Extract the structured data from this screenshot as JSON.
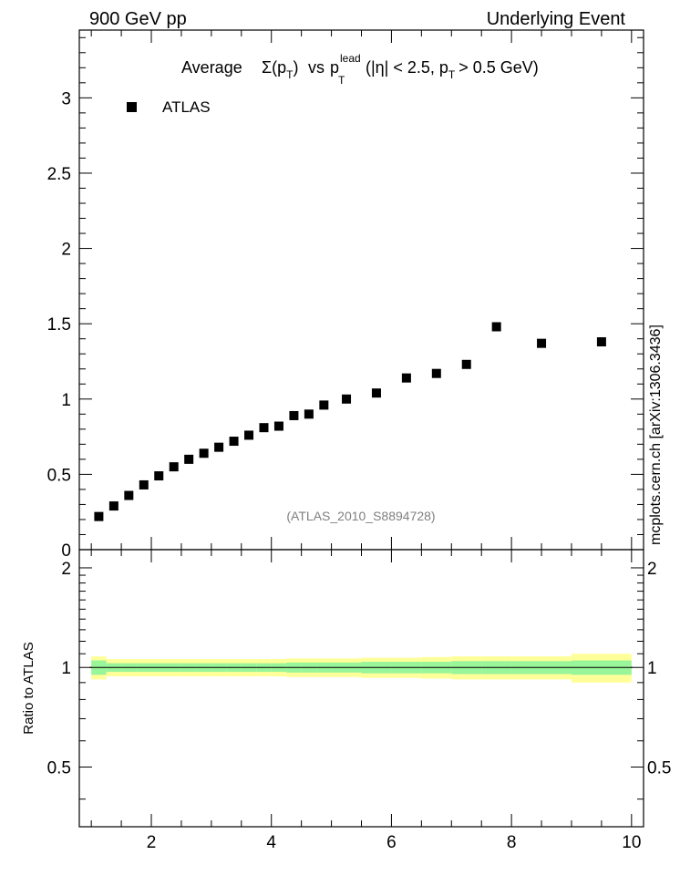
{
  "header": {
    "left": "900 GeV pp",
    "right": "Underlying Event"
  },
  "watermark": "mcplots.cern.ch [arXiv:1306.3436]",
  "analysis_tag": "(ATLAS_2010_S8894728)",
  "colors": {
    "markers": "#000000",
    "band_inner": "#99f599",
    "band_outer": "#ffff99",
    "ratio_line": "#000000",
    "tag_text": "#808080"
  },
  "chart_data": [
    {
      "panel": "main",
      "type": "scatter",
      "title_parts": {
        "prefix": "Average",
        "sigma": "Σ(p",
        "sub_T": "T",
        "close": ")",
        "vs": "vs",
        "p": "p",
        "sup_lead": "lead",
        "cuts_a": "(|η| < 2.5, p",
        "cuts_b": "> 0.5 GeV)"
      },
      "legend": [
        {
          "name": "ATLAS",
          "marker": "square",
          "position": "top-left"
        }
      ],
      "xlim": [
        0.8,
        10.2
      ],
      "ylim": [
        0,
        3.45
      ],
      "yticks": [
        0,
        0.5,
        1,
        1.5,
        2,
        2.5,
        3
      ],
      "ytick_labels": [
        "0",
        "0.5",
        "1",
        "1.5",
        "2",
        "2.5",
        "3"
      ],
      "series": [
        {
          "name": "ATLAS",
          "x": [
            1.125,
            1.375,
            1.625,
            1.875,
            2.125,
            2.375,
            2.625,
            2.875,
            3.125,
            3.375,
            3.625,
            3.875,
            4.125,
            4.375,
            4.625,
            4.875,
            5.25,
            5.75,
            6.25,
            6.75,
            7.25,
            7.75,
            8.5,
            9.5
          ],
          "y": [
            0.22,
            0.29,
            0.36,
            0.43,
            0.49,
            0.55,
            0.6,
            0.64,
            0.68,
            0.72,
            0.76,
            0.81,
            0.82,
            0.89,
            0.9,
            0.96,
            1.0,
            1.04,
            1.14,
            1.17,
            1.23,
            1.48,
            1.37,
            1.38
          ]
        }
      ]
    },
    {
      "panel": "ratio",
      "type": "area",
      "ylabel": "Ratio to ATLAS",
      "xlim": [
        0.8,
        10.2
      ],
      "ylim": [
        0.33,
        2.27
      ],
      "yticks": [
        0.5,
        1,
        2
      ],
      "ytick_labels": [
        "0.5",
        "1",
        "2"
      ],
      "xticks": [
        2,
        4,
        6,
        8,
        10
      ],
      "xtick_labels": [
        "2",
        "4",
        "6",
        "8",
        "10"
      ],
      "bins": [
        1.0,
        1.25,
        1.5,
        1.75,
        2.0,
        2.25,
        2.5,
        2.75,
        3.0,
        3.25,
        3.5,
        3.75,
        4.0,
        4.25,
        4.5,
        4.75,
        5.0,
        5.5,
        6.0,
        6.5,
        7.0,
        7.5,
        8.0,
        9.0,
        10.0
      ],
      "inner_band": [
        0.05,
        0.03,
        0.03,
        0.03,
        0.03,
        0.03,
        0.03,
        0.03,
        0.03,
        0.03,
        0.03,
        0.03,
        0.03,
        0.035,
        0.035,
        0.035,
        0.035,
        0.04,
        0.04,
        0.04,
        0.045,
        0.045,
        0.045,
        0.05
      ],
      "outer_band": [
        0.08,
        0.06,
        0.06,
        0.06,
        0.06,
        0.06,
        0.06,
        0.06,
        0.06,
        0.06,
        0.06,
        0.06,
        0.06,
        0.065,
        0.065,
        0.065,
        0.065,
        0.07,
        0.07,
        0.075,
        0.08,
        0.08,
        0.08,
        0.1
      ]
    }
  ]
}
